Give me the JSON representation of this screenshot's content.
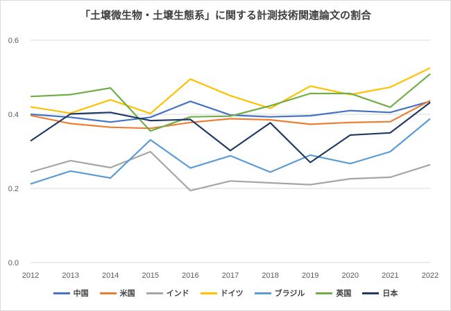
{
  "chart_data": {
    "type": "line",
    "title": "「土壌微生物・土壌生態系」に関する計測技術関連論文の割合",
    "xlabel": "",
    "ylabel": "",
    "x": [
      "2012",
      "2013",
      "2014",
      "2015",
      "2016",
      "2017",
      "2018",
      "2019",
      "2020",
      "2021",
      "2022"
    ],
    "ylim": [
      0,
      0.6
    ],
    "yticks": [
      "0.0",
      "0.2",
      "0.4",
      "0.6"
    ],
    "grid": true,
    "legend": "bottom",
    "series": [
      {
        "name": "中国",
        "color": "#4472c4",
        "values": [
          0.4,
          0.392,
          0.379,
          0.392,
          0.435,
          0.398,
          0.393,
          0.396,
          0.41,
          0.405,
          0.435
        ]
      },
      {
        "name": "米国",
        "color": "#ed7d31",
        "values": [
          0.397,
          0.375,
          0.365,
          0.362,
          0.378,
          0.388,
          0.385,
          0.373,
          0.378,
          0.38,
          0.437
        ]
      },
      {
        "name": "インド",
        "color": "#a5a5a5",
        "values": [
          0.244,
          0.275,
          0.256,
          0.299,
          0.194,
          0.22,
          0.215,
          0.21,
          0.226,
          0.23,
          0.264
        ]
      },
      {
        "name": "ドイツ",
        "color": "#ffc000",
        "values": [
          0.42,
          0.403,
          0.439,
          0.402,
          0.495,
          0.45,
          0.416,
          0.476,
          0.453,
          0.473,
          0.525
        ]
      },
      {
        "name": "ブラジル",
        "color": "#5b9bd5",
        "values": [
          0.212,
          0.247,
          0.228,
          0.331,
          0.255,
          0.288,
          0.244,
          0.29,
          0.267,
          0.299,
          0.388
        ]
      },
      {
        "name": "英国",
        "color": "#70ad47",
        "values": [
          0.448,
          0.453,
          0.471,
          0.355,
          0.393,
          0.395,
          0.423,
          0.456,
          0.456,
          0.419,
          0.509
        ]
      },
      {
        "name": "日本",
        "color": "#203864",
        "values": [
          0.328,
          0.401,
          0.405,
          0.383,
          0.386,
          0.302,
          0.377,
          0.27,
          0.344,
          0.35,
          0.432
        ]
      }
    ]
  }
}
